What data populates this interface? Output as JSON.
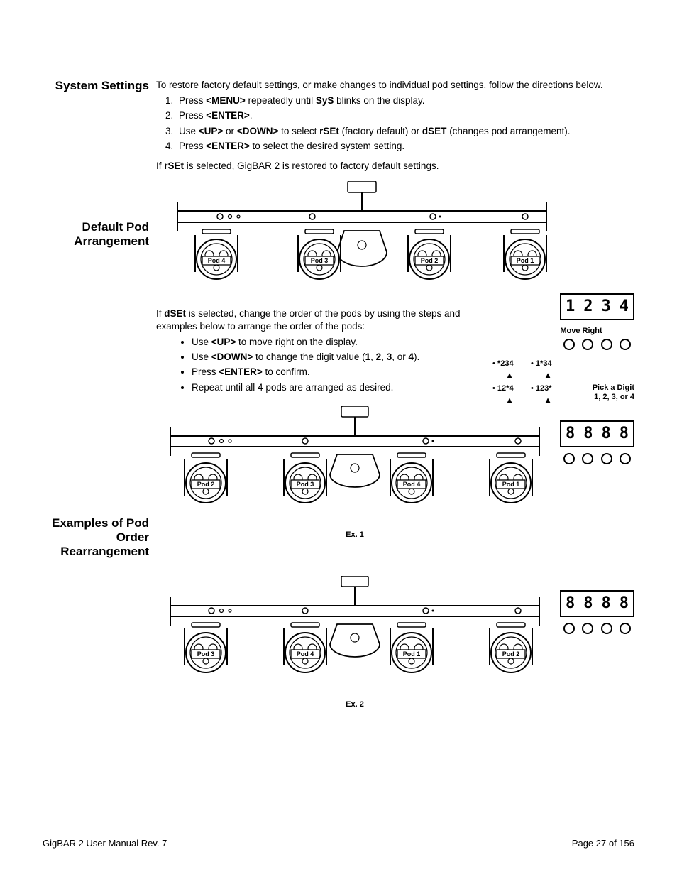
{
  "headings": {
    "system_settings": "System Settings",
    "default_pod": "Default Pod Arrangement",
    "examples": "Examples of Pod Order Rearrangement"
  },
  "intro": "To restore factory default settings, or make changes to individual pod settings, follow the directions below.",
  "steps": {
    "s1a": "Press ",
    "s1b": "<MENU>",
    "s1c": " repeatedly until ",
    "s1d": "SyS",
    "s1e": " blinks on the display.",
    "s2a": "Press ",
    "s2b": "<ENTER>",
    "s2c": ".",
    "s3a": "Use ",
    "s3b": "<UP>",
    "s3c": " or ",
    "s3d": "<DOWN>",
    "s3e": " to select ",
    "s3f": "rSEt",
    "s3g": " (factory default) or ",
    "s3h": "dSET",
    "s3i": " (changes pod arrangement).",
    "s4a": "Press ",
    "s4b": "<ENTER>",
    "s4c": " to select the desired system setting."
  },
  "rset_note_a": "If ",
  "rset_note_b": "rSEt",
  "rset_note_c": " is selected, GigBAR 2 is restored to factory default settings.",
  "dset_intro_a": "If ",
  "dset_intro_b": "dSEt",
  "dset_intro_c": " is selected, change the order of the pods by using the steps and examples below to arrange the order of the pods:",
  "dset_bullets": {
    "b1a": "Use ",
    "b1b": "<UP>",
    "b1c": " to move right on the display.",
    "b2a": "Use ",
    "b2b": "<DOWN>",
    "b2c": " to change the digit value (",
    "b2d": "1",
    "b2e": ", ",
    "b2f": "2",
    "b2g": ", ",
    "b2h": "3",
    "b2i": ", or ",
    "b2j": "4",
    "b2k": ").",
    "b3a": "Press ",
    "b3b": "<ENTER>",
    "b3c": " to confirm.",
    "b4": "Repeat until all 4 pods are arranged as desired."
  },
  "pod_labels_default": [
    "Pod 4",
    "Pod 3",
    "Pod 2",
    "Pod 1"
  ],
  "pod_labels_ex1": [
    "Pod 2",
    "Pod 3",
    "Pod 4",
    "Pod 1"
  ],
  "pod_labels_ex2": [
    "Pod 3",
    "Pod 4",
    "Pod 1",
    "Pod 2"
  ],
  "ex1_label": "Ex. 1",
  "ex2_label": "Ex. 2",
  "display_digits": [
    "1",
    "2",
    "3",
    "4"
  ],
  "instr": {
    "move_right": "Move Right",
    "pick_digit": "Pick a Digit",
    "digits_list": "1, 2, 3, or 4",
    "seq1": "*234",
    "seq2": "1*34",
    "seq3": "12*4",
    "seq4": "123*"
  },
  "footer": {
    "left": "GigBAR 2 User Manual Rev. 7",
    "right": "Page 27 of 156"
  },
  "colors": {
    "text": "#000000",
    "bg": "#ffffff",
    "rule": "#000000"
  }
}
